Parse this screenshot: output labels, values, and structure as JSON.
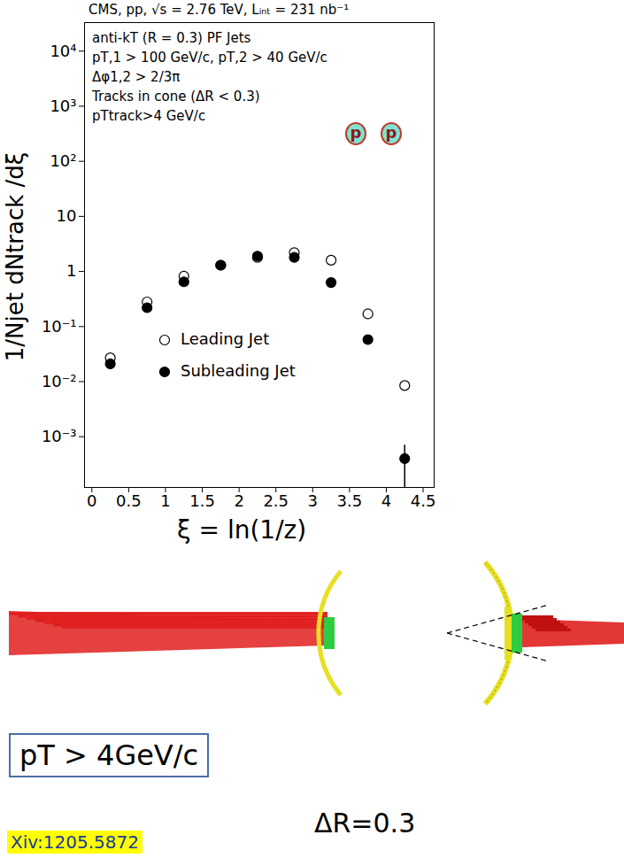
{
  "chart_data": {
    "type": "scatter",
    "title": "CMS, pp, √s = 2.76 TeV, Lᵢₙₜ = 231 nb⁻¹",
    "annotations": [
      "anti-kT (R = 0.3) PF Jets",
      "pT,1 > 100 GeV/c, pT,2 > 40 GeV/c",
      "Δφ1,2 > 2/3π",
      "Tracks in cone (ΔR < 0.3)",
      "pTtrack>4 GeV/c"
    ],
    "beam_labels": [
      "p",
      "p"
    ],
    "x_label": "ξ = ln(1/z)",
    "y_label": "1/Njet dNtrack /dξ",
    "x": [
      0.25,
      0.75,
      1.25,
      1.75,
      2.25,
      2.75,
      3.25,
      3.75,
      4.25
    ],
    "series": [
      {
        "name": "Leading Jet",
        "color": "#000000",
        "marker": "circle_open",
        "values": [
          0.027,
          0.28,
          0.82,
          1.3,
          1.8,
          2.2,
          1.6,
          0.17,
          0.0085
        ]
      },
      {
        "name": "Subleading Jet",
        "color": "#000000",
        "marker": "circle",
        "values": [
          0.021,
          0.22,
          0.65,
          1.3,
          1.9,
          1.8,
          0.63,
          0.058,
          0.0004
        ],
        "errors": [
          null,
          null,
          null,
          null,
          null,
          null,
          null,
          null,
          0.0003
        ]
      }
    ],
    "log": "y",
    "legend": "center left",
    "xlim": [
      -0.1,
      4.65
    ],
    "xticks": [
      0,
      0.5,
      1,
      1.5,
      2,
      2.5,
      3,
      3.5,
      4,
      4.5
    ],
    "ylim": [
      0.00012,
      33000
    ],
    "yticks": [
      {
        "value": 0.001,
        "label": "10⁻³"
      },
      {
        "value": 0.01,
        "label": "10⁻²"
      },
      {
        "value": 0.1,
        "label": "10⁻¹"
      },
      1,
      10,
      {
        "value": 100,
        "label": "10²"
      },
      {
        "value": 1000,
        "label": "10³"
      },
      {
        "value": 10000,
        "label": "10⁴"
      }
    ],
    "diagram_labels": {
      "cut": "pT > 4GeV/c",
      "cone": "ΔR=0.3",
      "reference": "Xiv:1205.5872"
    }
  }
}
